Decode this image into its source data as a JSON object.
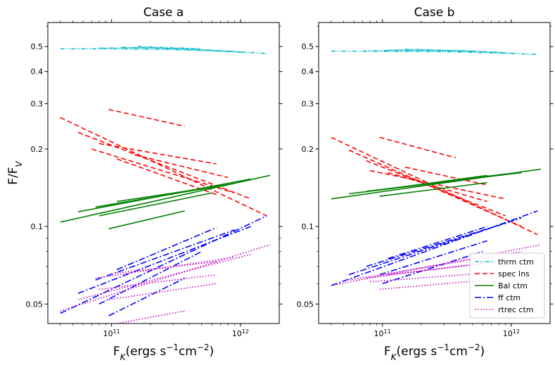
{
  "chart_data": [
    {
      "type": "line",
      "title": "Case a",
      "xlabel": "F_K(ergs s^-1 cm^-2)",
      "ylabel": "F/F_V",
      "xscale": "log",
      "yscale": "log",
      "xlim": [
        32000000000.0,
        2000000000000.0
      ],
      "ylim": [
        0.042,
        0.62
      ],
      "x_ticks": [
        {
          "value": 100000000000.0,
          "label": "10^11"
        },
        {
          "value": 1000000000000.0,
          "label": "10^12"
        }
      ],
      "y_ticks": [
        {
          "value": 0.5,
          "label": "0.5"
        },
        {
          "value": 0.4,
          "label": "0.4"
        },
        {
          "value": 0.3,
          "label": "0.3"
        },
        {
          "value": 0.2,
          "label": "0.2"
        },
        {
          "value": 0.1,
          "label": "0.1"
        },
        {
          "value": 0.05,
          "label": "0.05"
        }
      ],
      "series": [
        {
          "name": "thrm ctm",
          "key": "thrm",
          "segments": [
            [
              [
                40000000000.0,
                0.49
              ],
              [
                100000000000.0,
                0.49
              ],
              [
                300000000000.0,
                0.487
              ],
              [
                800000000000.0,
                0.48
              ],
              [
                1600000000000.0,
                0.47
              ]
            ],
            [
              [
                80000000000.0,
                0.493
              ],
              [
                200000000000.0,
                0.495
              ],
              [
                600000000000.0,
                0.482
              ],
              [
                1100000000000.0,
                0.474
              ]
            ],
            [
              [
                120000000000.0,
                0.497
              ],
              [
                400000000000.0,
                0.49
              ],
              [
                900000000000.0,
                0.478
              ]
            ],
            [
              [
                160000000000.0,
                0.5
              ],
              [
                500000000000.0,
                0.49
              ]
            ]
          ]
        },
        {
          "name": "spec lns",
          "key": "spec",
          "segments": [
            [
              [
                40000000000.0,
                0.265
              ],
              [
                1600000000000.0,
                0.11
              ]
            ],
            [
              [
                95000000000.0,
                0.285
              ],
              [
                370000000000.0,
                0.245
              ]
            ],
            [
              [
                55000000000.0,
                0.232
              ],
              [
                1200000000000.0,
                0.128
              ]
            ],
            [
              [
                70000000000.0,
                0.2
              ],
              [
                900000000000.0,
                0.135
              ]
            ],
            [
              [
                110000000000.0,
                0.183
              ],
              [
                650000000000.0,
                0.133
              ]
            ],
            [
              [
                80000000000.0,
                0.21
              ],
              [
                650000000000.0,
                0.175
              ]
            ],
            [
              [
                150000000000.0,
                0.19
              ],
              [
                800000000000.0,
                0.155
              ]
            ]
          ]
        },
        {
          "name": "Bal ctm",
          "key": "bal",
          "segments": [
            [
              [
                40000000000.0,
                0.104
              ],
              [
                1700000000000.0,
                0.158
              ]
            ],
            [
              [
                55000000000.0,
                0.114
              ],
              [
                1200000000000.0,
                0.153
              ]
            ],
            [
              [
                75000000000.0,
                0.119
              ],
              [
                900000000000.0,
                0.147
              ]
            ],
            [
              [
                110000000000.0,
                0.125
              ],
              [
                650000000000.0,
                0.143
              ]
            ],
            [
              [
                80000000000.0,
                0.11
              ],
              [
                600000000000.0,
                0.135
              ]
            ],
            [
              [
                95000000000.0,
                0.098
              ],
              [
                370000000000.0,
                0.115
              ]
            ]
          ]
        },
        {
          "name": "ff ctm",
          "key": "ff",
          "segments": [
            [
              [
                40000000000.0,
                0.046
              ],
              [
                1600000000000.0,
                0.11
              ]
            ],
            [
              [
                55000000000.0,
                0.055
              ],
              [
                1200000000000.0,
                0.1
              ]
            ],
            [
              [
                75000000000.0,
                0.062
              ],
              [
                900000000000.0,
                0.097
              ]
            ],
            [
              [
                110000000000.0,
                0.068
              ],
              [
                650000000000.0,
                0.099
              ]
            ],
            [
              [
                80000000000.0,
                0.05
              ],
              [
                500000000000.0,
                0.08
              ]
            ],
            [
              [
                95000000000.0,
                0.045
              ],
              [
                370000000000.0,
                0.063
              ]
            ]
          ]
        },
        {
          "name": "rtrec ctm",
          "key": "rtrec",
          "segments": [
            [
              [
                40000000000.0,
                0.047
              ],
              [
                1700000000000.0,
                0.085
              ]
            ],
            [
              [
                55000000000.0,
                0.052
              ],
              [
                1200000000000.0,
                0.078
              ]
            ],
            [
              [
                75000000000.0,
                0.063
              ],
              [
                900000000000.0,
                0.076
              ]
            ],
            [
              [
                110000000000.0,
                0.066
              ],
              [
                650000000000.0,
                0.073
              ]
            ],
            [
              [
                80000000000.0,
                0.057
              ],
              [
                650000000000.0,
                0.065
              ]
            ],
            [
              [
                95000000000.0,
                0.052
              ],
              [
                650000000000.0,
                0.06
              ]
            ],
            [
              [
                110000000000.0,
                0.042
              ],
              [
                370000000000.0,
                0.047
              ]
            ]
          ]
        }
      ]
    },
    {
      "type": "line",
      "title": "Case b",
      "xlabel": "F_K(ergs s^-1 cm^-2)",
      "xscale": "log",
      "yscale": "log",
      "xlim": [
        32000000000.0,
        2000000000000.0
      ],
      "ylim": [
        0.042,
        0.62
      ],
      "x_ticks": [
        {
          "value": 100000000000.0,
          "label": "10^11"
        },
        {
          "value": 1000000000000.0,
          "label": "10^12"
        }
      ],
      "y_ticks": [
        {
          "value": 0.5,
          "label": "0.5"
        },
        {
          "value": 0.4,
          "label": "0.4"
        },
        {
          "value": 0.3,
          "label": "0.3"
        },
        {
          "value": 0.2,
          "label": "0.2"
        },
        {
          "value": 0.1,
          "label": "0.1"
        },
        {
          "value": 0.05,
          "label": "0.05"
        }
      ],
      "series": [
        {
          "name": "thrm ctm",
          "key": "thrm",
          "segments": [
            [
              [
                40000000000.0,
                0.48
              ],
              [
                300000000000.0,
                0.478
              ],
              [
                800000000000.0,
                0.472
              ],
              [
                1600000000000.0,
                0.466
              ]
            ],
            [
              [
                70000000000.0,
                0.48
              ],
              [
                200000000000.0,
                0.487
              ],
              [
                600000000000.0,
                0.476
              ],
              [
                1100000000000.0,
                0.47
              ]
            ],
            [
              [
                110000000000.0,
                0.484
              ],
              [
                400000000000.0,
                0.482
              ],
              [
                900000000000.0,
                0.474
              ]
            ],
            [
              [
                150000000000.0,
                0.488
              ],
              [
                500000000000.0,
                0.48
              ]
            ]
          ]
        },
        {
          "name": "spec lns",
          "key": "spec",
          "segments": [
            [
              [
                40000000000.0,
                0.222
              ],
              [
                1600000000000.0,
                0.093
              ]
            ],
            [
              [
                95000000000.0,
                0.222
              ],
              [
                370000000000.0,
                0.185
              ]
            ],
            [
              [
                55000000000.0,
                0.198
              ],
              [
                1200000000000.0,
                0.1
              ]
            ],
            [
              [
                75000000000.0,
                0.18
              ],
              [
                900000000000.0,
                0.11
              ]
            ],
            [
              [
                110000000000.0,
                0.162
              ],
              [
                650000000000.0,
                0.125
              ]
            ],
            [
              [
                80000000000.0,
                0.165
              ],
              [
                900000000000.0,
                0.128
              ]
            ],
            [
              [
                150000000000.0,
                0.17
              ],
              [
                650000000000.0,
                0.145
              ]
            ]
          ]
        },
        {
          "name": "Bal ctm",
          "key": "bal",
          "segments": [
            [
              [
                40000000000.0,
                0.128
              ],
              [
                1700000000000.0,
                0.167
              ]
            ],
            [
              [
                55000000000.0,
                0.134
              ],
              [
                1200000000000.0,
                0.162
              ]
            ],
            [
              [
                75000000000.0,
                0.137
              ],
              [
                900000000000.0,
                0.16
              ]
            ],
            [
              [
                110000000000.0,
                0.14
              ],
              [
                650000000000.0,
                0.158
              ]
            ],
            [
              [
                95000000000.0,
                0.131
              ],
              [
                650000000000.0,
                0.148
              ]
            ]
          ]
        },
        {
          "name": "ff ctm",
          "key": "ff",
          "segments": [
            [
              [
                40000000000.0,
                0.059
              ],
              [
                1600000000000.0,
                0.115
              ]
            ],
            [
              [
                55000000000.0,
                0.065
              ],
              [
                1200000000000.0,
                0.108
              ]
            ],
            [
              [
                75000000000.0,
                0.07
              ],
              [
                900000000000.0,
                0.103
              ]
            ],
            [
              [
                110000000000.0,
                0.075
              ],
              [
                650000000000.0,
                0.1
              ]
            ],
            [
              [
                95000000000.0,
                0.065
              ],
              [
                650000000000.0,
                0.088
              ]
            ],
            [
              [
                100000000000.0,
                0.06
              ],
              [
                600000000000.0,
                0.08
              ]
            ]
          ]
        },
        {
          "name": "rtrec ctm",
          "key": "rtrec",
          "segments": [
            [
              [
                40000000000.0,
                0.059
              ],
              [
                1700000000000.0,
                0.085
              ]
            ],
            [
              [
                55000000000.0,
                0.062
              ],
              [
                1200000000000.0,
                0.08
              ]
            ],
            [
              [
                75000000000.0,
                0.063
              ],
              [
                900000000000.0,
                0.074
              ]
            ],
            [
              [
                110000000000.0,
                0.065
              ],
              [
                650000000000.0,
                0.072
              ]
            ],
            [
              [
                80000000000.0,
                0.061
              ],
              [
                650000000000.0,
                0.066
              ]
            ],
            [
              [
                95000000000.0,
                0.057
              ],
              [
                650000000000.0,
                0.062
              ]
            ]
          ]
        }
      ]
    }
  ],
  "legend": {
    "placement": "lower-right of right panel",
    "items": [
      {
        "key": "thrm",
        "label": "thrm ctm"
      },
      {
        "key": "spec",
        "label": "spec lns"
      },
      {
        "key": "bal",
        "label": "Bal ctm"
      },
      {
        "key": "ff",
        "label": "ff ctm"
      },
      {
        "key": "rtrec",
        "label": "rtrec ctm"
      }
    ]
  },
  "styles": {
    "thrm": {
      "color": "#17becf",
      "dash": "dashdotdot"
    },
    "spec": {
      "color": "#ff0000",
      "dash": "dashed"
    },
    "bal": {
      "color": "#008000",
      "dash": "solid"
    },
    "ff": {
      "color": "#0000ff",
      "dash": "dashdot"
    },
    "rtrec": {
      "color": "#bf00bf",
      "dash": "dotted"
    }
  }
}
